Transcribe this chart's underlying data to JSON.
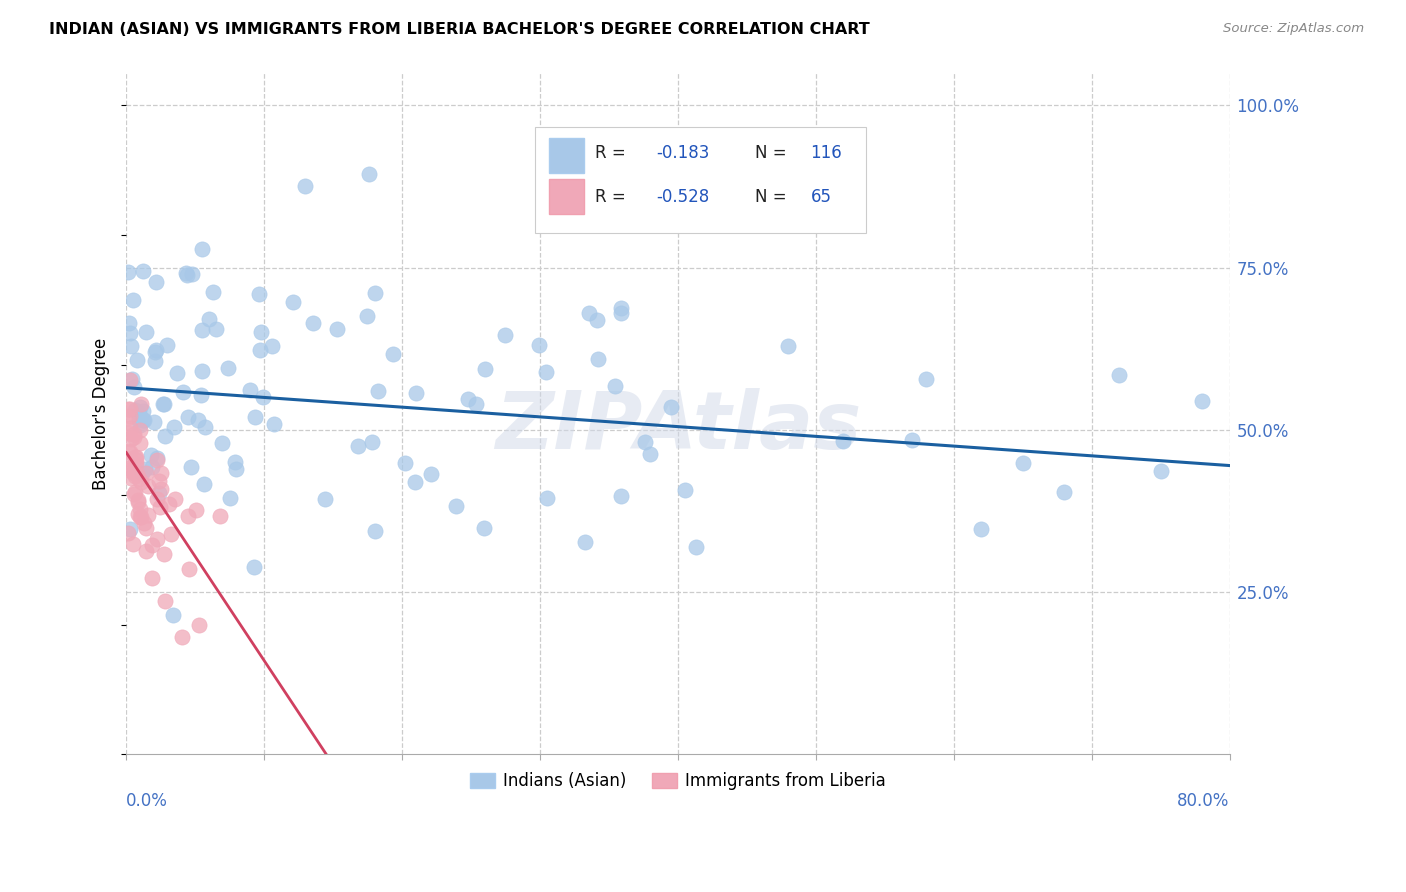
{
  "title": "INDIAN (ASIAN) VS IMMIGRANTS FROM LIBERIA BACHELOR'S DEGREE CORRELATION CHART",
  "source": "Source: ZipAtlas.com",
  "ylabel": "Bachelor's Degree",
  "legend_label_blue": "Indians (Asian)",
  "legend_label_pink": "Immigrants from Liberia",
  "watermark": "ZIPAtlas",
  "blue_color": "#a8c8e8",
  "pink_color": "#f0a8b8",
  "blue_line_color": "#1a5fa0",
  "pink_line_color": "#d04060",
  "xmin": 0.0,
  "xmax": 0.8,
  "ymin": 0.0,
  "ymax": 1.05,
  "xtick_positions": [
    0.0,
    0.1,
    0.2,
    0.3,
    0.4,
    0.5,
    0.6,
    0.7,
    0.8
  ],
  "ytick_positions": [
    0.25,
    0.5,
    0.75,
    1.0
  ],
  "ytick_labels": [
    "25.0%",
    "50.0%",
    "75.0%",
    "100.0%"
  ],
  "grid_color": "#cccccc",
  "blue_trend_x": [
    0.0,
    0.8
  ],
  "blue_trend_y": [
    0.565,
    0.445
  ],
  "pink_trend_x": [
    0.0,
    0.145
  ],
  "pink_trend_y": [
    0.465,
    0.0
  ],
  "blue_scatter_seed": 42,
  "pink_scatter_seed": 77,
  "n_blue": 116,
  "n_pink": 65
}
